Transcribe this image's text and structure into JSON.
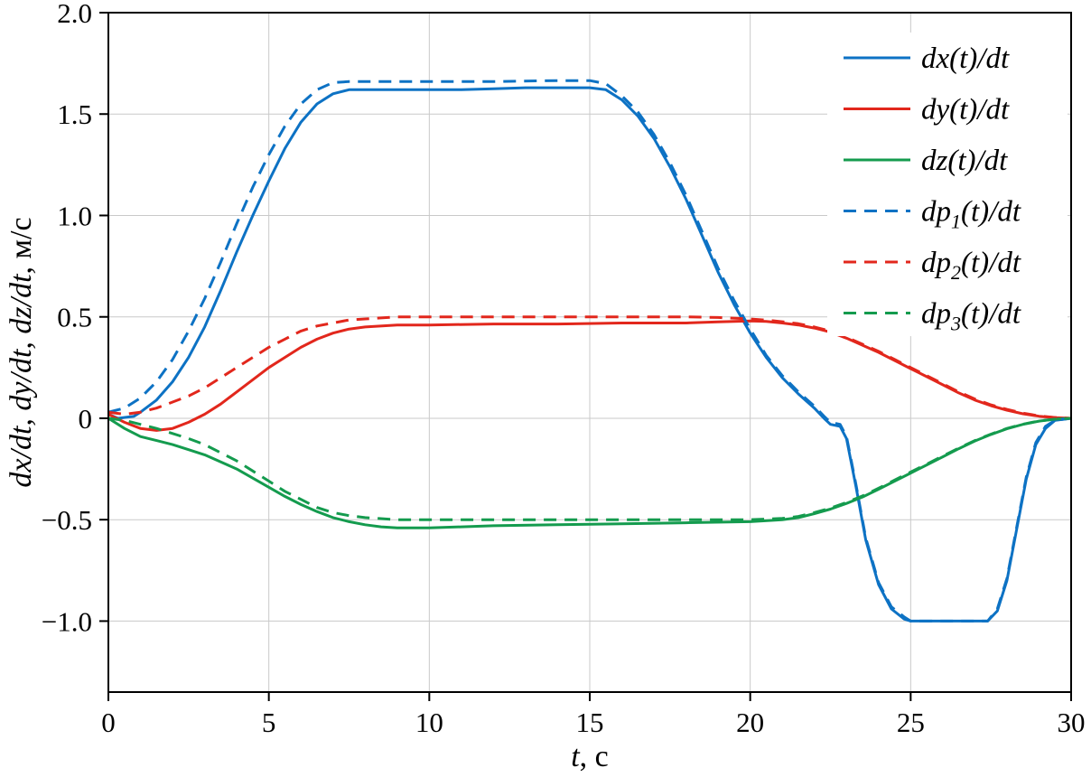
{
  "figure": {
    "xlabel": {
      "italic": "t",
      "regular": ", с"
    },
    "ylabel": {
      "italic": "dx/dt, dy/dt, dz/dt",
      "regular": ", м/с"
    }
  },
  "chart_data": {
    "type": "line",
    "title": "",
    "xlabel": "t, с",
    "ylabel": "dx/dt, dy/dt, dz/dt, м/с",
    "xlim": [
      0,
      30
    ],
    "ylim": [
      -1.35,
      2.0
    ],
    "xticks": [
      0,
      5,
      10,
      15,
      20,
      25,
      30
    ],
    "xtick_labels": [
      "0",
      "5",
      "10",
      "15",
      "20",
      "25",
      "30"
    ],
    "yticks": [
      -1.0,
      -0.5,
      0,
      0.5,
      1.0,
      1.5,
      2.0
    ],
    "ytick_labels": [
      "−1.0",
      "−0.5",
      "0",
      "0.5",
      "1.0",
      "1.5",
      "2.0"
    ],
    "grid": true,
    "grid_color": "#c9c9c9",
    "legend_position": "upper right",
    "colors": {
      "blue": "#0d72c4",
      "red": "#e2271c",
      "green": "#149b4e"
    },
    "series": [
      {
        "id": "dx",
        "label": "dx(t)/dt",
        "color": "blue",
        "style": "solid",
        "points": [
          [
            0,
            0.02
          ],
          [
            0.3,
            0.0
          ],
          [
            0.8,
            0.01
          ],
          [
            1,
            0.03
          ],
          [
            1.5,
            0.09
          ],
          [
            2,
            0.18
          ],
          [
            2.5,
            0.3
          ],
          [
            3,
            0.45
          ],
          [
            3.5,
            0.63
          ],
          [
            4,
            0.82
          ],
          [
            4.5,
            1.0
          ],
          [
            5,
            1.17
          ],
          [
            5.5,
            1.33
          ],
          [
            6,
            1.46
          ],
          [
            6.5,
            1.55
          ],
          [
            7,
            1.6
          ],
          [
            7.5,
            1.62
          ],
          [
            8,
            1.62
          ],
          [
            9,
            1.62
          ],
          [
            10,
            1.62
          ],
          [
            11,
            1.62
          ],
          [
            12,
            1.625
          ],
          [
            13,
            1.63
          ],
          [
            14,
            1.63
          ],
          [
            15,
            1.63
          ],
          [
            15.5,
            1.62
          ],
          [
            16,
            1.57
          ],
          [
            16.5,
            1.49
          ],
          [
            17,
            1.38
          ],
          [
            17.5,
            1.24
          ],
          [
            18,
            1.08
          ],
          [
            18.5,
            0.9
          ],
          [
            19,
            0.72
          ],
          [
            19.5,
            0.56
          ],
          [
            20,
            0.42
          ],
          [
            20.5,
            0.3
          ],
          [
            21,
            0.2
          ],
          [
            21.5,
            0.12
          ],
          [
            22,
            0.05
          ],
          [
            22.3,
            0.0
          ],
          [
            22.5,
            -0.03
          ],
          [
            22.8,
            -0.04
          ],
          [
            23,
            -0.1
          ],
          [
            23.3,
            -0.34
          ],
          [
            23.6,
            -0.6
          ],
          [
            24,
            -0.82
          ],
          [
            24.4,
            -0.94
          ],
          [
            24.8,
            -0.99
          ],
          [
            25,
            -1.0
          ],
          [
            25.5,
            -1.0
          ],
          [
            26,
            -1.0
          ],
          [
            26.5,
            -1.0
          ],
          [
            27,
            -1.0
          ],
          [
            27.4,
            -1.0
          ],
          [
            27.7,
            -0.95
          ],
          [
            28,
            -0.8
          ],
          [
            28.3,
            -0.55
          ],
          [
            28.6,
            -0.3
          ],
          [
            28.9,
            -0.13
          ],
          [
            29.2,
            -0.05
          ],
          [
            29.5,
            -0.01
          ],
          [
            30,
            0.0
          ]
        ]
      },
      {
        "id": "dy",
        "label": "dy(t)/dt",
        "color": "red",
        "style": "solid",
        "points": [
          [
            0,
            0.02
          ],
          [
            0.5,
            -0.02
          ],
          [
            1,
            -0.05
          ],
          [
            1.5,
            -0.06
          ],
          [
            2,
            -0.05
          ],
          [
            2.5,
            -0.02
          ],
          [
            3,
            0.02
          ],
          [
            3.5,
            0.07
          ],
          [
            4,
            0.13
          ],
          [
            4.5,
            0.19
          ],
          [
            5,
            0.25
          ],
          [
            5.5,
            0.3
          ],
          [
            6,
            0.35
          ],
          [
            6.5,
            0.39
          ],
          [
            7,
            0.42
          ],
          [
            7.5,
            0.44
          ],
          [
            8,
            0.45
          ],
          [
            9,
            0.46
          ],
          [
            10,
            0.46
          ],
          [
            12,
            0.465
          ],
          [
            14,
            0.465
          ],
          [
            16,
            0.47
          ],
          [
            18,
            0.47
          ],
          [
            19,
            0.475
          ],
          [
            20,
            0.48
          ],
          [
            20.5,
            0.478
          ],
          [
            21,
            0.47
          ],
          [
            21.5,
            0.46
          ],
          [
            22,
            0.445
          ],
          [
            22.5,
            0.425
          ],
          [
            23,
            0.395
          ],
          [
            23.5,
            0.36
          ],
          [
            24,
            0.325
          ],
          [
            24.5,
            0.285
          ],
          [
            25,
            0.245
          ],
          [
            25.5,
            0.205
          ],
          [
            26,
            0.165
          ],
          [
            26.5,
            0.125
          ],
          [
            27,
            0.09
          ],
          [
            27.5,
            0.062
          ],
          [
            28,
            0.04
          ],
          [
            28.5,
            0.022
          ],
          [
            29,
            0.01
          ],
          [
            29.5,
            0.003
          ],
          [
            30,
            0.0
          ]
        ]
      },
      {
        "id": "dz",
        "label": "dz(t)/dt",
        "color": "green",
        "style": "solid",
        "points": [
          [
            0,
            0.0
          ],
          [
            0.5,
            -0.05
          ],
          [
            1,
            -0.09
          ],
          [
            1.5,
            -0.11
          ],
          [
            2,
            -0.13
          ],
          [
            2.5,
            -0.155
          ],
          [
            3,
            -0.18
          ],
          [
            3.5,
            -0.215
          ],
          [
            4,
            -0.25
          ],
          [
            4.5,
            -0.295
          ],
          [
            5,
            -0.34
          ],
          [
            5.5,
            -0.385
          ],
          [
            6,
            -0.425
          ],
          [
            6.5,
            -0.46
          ],
          [
            7,
            -0.49
          ],
          [
            7.5,
            -0.51
          ],
          [
            8,
            -0.525
          ],
          [
            8.5,
            -0.535
          ],
          [
            9,
            -0.54
          ],
          [
            10,
            -0.54
          ],
          [
            11,
            -0.535
          ],
          [
            12,
            -0.53
          ],
          [
            14,
            -0.525
          ],
          [
            16,
            -0.52
          ],
          [
            18,
            -0.515
          ],
          [
            20,
            -0.51
          ],
          [
            21,
            -0.5
          ],
          [
            21.5,
            -0.49
          ],
          [
            22,
            -0.47
          ],
          [
            22.5,
            -0.448
          ],
          [
            23,
            -0.42
          ],
          [
            23.5,
            -0.388
          ],
          [
            24,
            -0.35
          ],
          [
            24.5,
            -0.31
          ],
          [
            25,
            -0.27
          ],
          [
            25.5,
            -0.23
          ],
          [
            26,
            -0.19
          ],
          [
            26.5,
            -0.15
          ],
          [
            27,
            -0.112
          ],
          [
            27.5,
            -0.08
          ],
          [
            28,
            -0.052
          ],
          [
            28.5,
            -0.03
          ],
          [
            29,
            -0.014
          ],
          [
            29.5,
            -0.004
          ],
          [
            30,
            0.0
          ]
        ]
      },
      {
        "id": "dp1",
        "label": "dp_1(t)/dt",
        "color": "blue",
        "style": "dashed",
        "points": [
          [
            0,
            0.03
          ],
          [
            0.5,
            0.05
          ],
          [
            1,
            0.1
          ],
          [
            1.5,
            0.18
          ],
          [
            2,
            0.29
          ],
          [
            2.5,
            0.43
          ],
          [
            3,
            0.59
          ],
          [
            3.5,
            0.77
          ],
          [
            4,
            0.96
          ],
          [
            4.5,
            1.14
          ],
          [
            5,
            1.3
          ],
          [
            5.5,
            1.44
          ],
          [
            6,
            1.55
          ],
          [
            6.5,
            1.62
          ],
          [
            7,
            1.655
          ],
          [
            7.5,
            1.66
          ],
          [
            8,
            1.66
          ],
          [
            9,
            1.66
          ],
          [
            10,
            1.66
          ],
          [
            12,
            1.66
          ],
          [
            14,
            1.665
          ],
          [
            15,
            1.665
          ],
          [
            15.5,
            1.65
          ],
          [
            16,
            1.59
          ],
          [
            16.5,
            1.51
          ],
          [
            17,
            1.4
          ],
          [
            17.5,
            1.26
          ],
          [
            18,
            1.1
          ],
          [
            18.5,
            0.92
          ],
          [
            19,
            0.74
          ],
          [
            19.5,
            0.58
          ],
          [
            20,
            0.44
          ],
          [
            20.5,
            0.31
          ],
          [
            21,
            0.21
          ],
          [
            21.5,
            0.13
          ],
          [
            22,
            0.06
          ],
          [
            22.3,
            0.01
          ],
          [
            22.5,
            -0.02
          ],
          [
            22.8,
            -0.03
          ],
          [
            23,
            -0.09
          ],
          [
            23.3,
            -0.33
          ],
          [
            23.6,
            -0.59
          ],
          [
            24,
            -0.81
          ],
          [
            24.4,
            -0.93
          ],
          [
            24.8,
            -0.98
          ],
          [
            25,
            -1.0
          ],
          [
            26,
            -1.0
          ],
          [
            27,
            -1.0
          ],
          [
            27.4,
            -1.0
          ],
          [
            27.7,
            -0.94
          ],
          [
            28,
            -0.79
          ],
          [
            28.3,
            -0.54
          ],
          [
            28.6,
            -0.29
          ],
          [
            28.9,
            -0.12
          ],
          [
            29.2,
            -0.04
          ],
          [
            29.5,
            -0.01
          ],
          [
            30,
            0.0
          ]
        ]
      },
      {
        "id": "dp2",
        "label": "dp_2(t)/dt",
        "color": "red",
        "style": "dashed",
        "points": [
          [
            0,
            0.03
          ],
          [
            0.5,
            0.02
          ],
          [
            1,
            0.03
          ],
          [
            1.5,
            0.05
          ],
          [
            2,
            0.08
          ],
          [
            2.5,
            0.11
          ],
          [
            3,
            0.15
          ],
          [
            3.5,
            0.2
          ],
          [
            4,
            0.25
          ],
          [
            4.5,
            0.3
          ],
          [
            5,
            0.35
          ],
          [
            5.5,
            0.39
          ],
          [
            6,
            0.43
          ],
          [
            6.5,
            0.455
          ],
          [
            7,
            0.47
          ],
          [
            7.5,
            0.485
          ],
          [
            8,
            0.49
          ],
          [
            9,
            0.5
          ],
          [
            10,
            0.5
          ],
          [
            12,
            0.5
          ],
          [
            14,
            0.5
          ],
          [
            16,
            0.5
          ],
          [
            18,
            0.5
          ],
          [
            19,
            0.497
          ],
          [
            20,
            0.49
          ],
          [
            20.5,
            0.484
          ],
          [
            21,
            0.476
          ],
          [
            21.5,
            0.466
          ],
          [
            22,
            0.45
          ],
          [
            22.5,
            0.43
          ],
          [
            23,
            0.4
          ],
          [
            23.5,
            0.365
          ],
          [
            24,
            0.33
          ],
          [
            24.5,
            0.29
          ],
          [
            25,
            0.25
          ],
          [
            25.5,
            0.21
          ],
          [
            26,
            0.17
          ],
          [
            26.5,
            0.13
          ],
          [
            27,
            0.095
          ],
          [
            27.5,
            0.066
          ],
          [
            28,
            0.044
          ],
          [
            28.5,
            0.025
          ],
          [
            29,
            0.012
          ],
          [
            29.5,
            0.004
          ],
          [
            30,
            0.0
          ]
        ]
      },
      {
        "id": "dp3",
        "label": "dp_3(t)/dt",
        "color": "green",
        "style": "dashed",
        "points": [
          [
            0,
            0.0
          ],
          [
            0.5,
            -0.01
          ],
          [
            1,
            -0.03
          ],
          [
            1.5,
            -0.05
          ],
          [
            2,
            -0.075
          ],
          [
            2.5,
            -0.1
          ],
          [
            3,
            -0.13
          ],
          [
            3.5,
            -0.17
          ],
          [
            4,
            -0.21
          ],
          [
            4.5,
            -0.26
          ],
          [
            5,
            -0.31
          ],
          [
            5.5,
            -0.36
          ],
          [
            6,
            -0.4
          ],
          [
            6.5,
            -0.44
          ],
          [
            7,
            -0.465
          ],
          [
            7.5,
            -0.48
          ],
          [
            8,
            -0.49
          ],
          [
            9,
            -0.5
          ],
          [
            10,
            -0.5
          ],
          [
            12,
            -0.5
          ],
          [
            14,
            -0.5
          ],
          [
            16,
            -0.5
          ],
          [
            18,
            -0.5
          ],
          [
            20,
            -0.5
          ],
          [
            21,
            -0.494
          ],
          [
            21.5,
            -0.484
          ],
          [
            22,
            -0.465
          ],
          [
            22.5,
            -0.443
          ],
          [
            23,
            -0.415
          ],
          [
            23.5,
            -0.383
          ],
          [
            24,
            -0.345
          ],
          [
            24.5,
            -0.305
          ],
          [
            25,
            -0.265
          ],
          [
            25.5,
            -0.226
          ],
          [
            26,
            -0.186
          ],
          [
            26.5,
            -0.147
          ],
          [
            27,
            -0.11
          ],
          [
            27.5,
            -0.078
          ],
          [
            28,
            -0.05
          ],
          [
            28.5,
            -0.029
          ],
          [
            29,
            -0.013
          ],
          [
            29.5,
            -0.004
          ],
          [
            30,
            0.0
          ]
        ]
      }
    ]
  }
}
